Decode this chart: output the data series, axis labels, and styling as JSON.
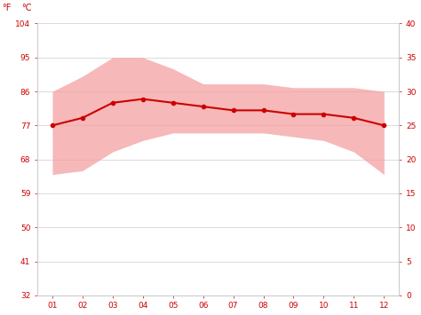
{
  "months": [
    1,
    2,
    3,
    4,
    5,
    6,
    7,
    8,
    9,
    10,
    11,
    12
  ],
  "month_labels": [
    "01",
    "02",
    "03",
    "04",
    "05",
    "06",
    "07",
    "08",
    "09",
    "10",
    "11",
    "12"
  ],
  "avg_temp_f": [
    77,
    79,
    83,
    84,
    83,
    82,
    81,
    81,
    80,
    80,
    79,
    77
  ],
  "max_temp_f": [
    86,
    90,
    95,
    95,
    92,
    88,
    88,
    88,
    87,
    87,
    87,
    86
  ],
  "min_temp_f": [
    64,
    65,
    70,
    73,
    75,
    75,
    75,
    75,
    74,
    73,
    70,
    64
  ],
  "line_color": "#cc0000",
  "fill_color": "#f4a0a0",
  "fill_alpha": 0.75,
  "background_color": "#ffffff",
  "grid_color": "#cccccc",
  "tick_color": "#cc0000",
  "axis_label_color": "#cc0000",
  "ylim_f": [
    32,
    104
  ],
  "yticks_f": [
    32,
    41,
    50,
    59,
    68,
    77,
    86,
    95,
    104
  ],
  "yticks_c": [
    0,
    5,
    10,
    15,
    20,
    25,
    30,
    35,
    40
  ],
  "figsize": [
    4.74,
    3.55
  ],
  "dpi": 100
}
